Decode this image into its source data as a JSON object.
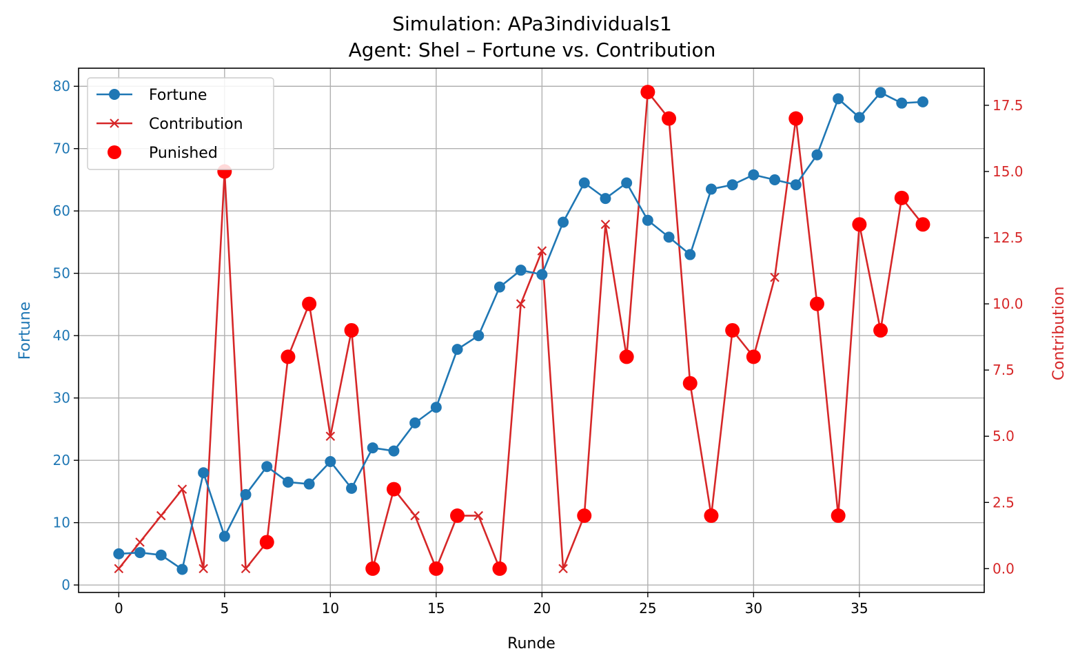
{
  "chart_data": {
    "type": "line",
    "title_lines": [
      "Simulation: APa3individuals1",
      "Agent: Shel – Fortune vs. Contribution"
    ],
    "xlabel": "Runde",
    "ylabel_left": "Fortune",
    "ylabel_right": "Contribution",
    "xlim": [
      -1.9,
      40.9
    ],
    "ylim_left": [
      -1.2,
      82.9
    ],
    "ylim_right": [
      -0.9,
      18.9
    ],
    "x_ticks": [
      0,
      5,
      10,
      15,
      20,
      25,
      30,
      35
    ],
    "y_ticks_left": [
      0,
      10,
      20,
      30,
      40,
      50,
      60,
      70,
      80
    ],
    "y_ticks_right": [
      "0.0",
      "2.5",
      "5.0",
      "7.5",
      "10.0",
      "12.5",
      "15.0",
      "17.5"
    ],
    "grid": true,
    "legend_position": "upper-left",
    "colors": {
      "fortune": "#1f77b4",
      "contribution": "#d62728",
      "punished": "#ff0000"
    },
    "x": [
      0,
      1,
      2,
      3,
      4,
      5,
      6,
      7,
      8,
      9,
      10,
      11,
      12,
      13,
      14,
      15,
      16,
      17,
      18,
      19,
      20,
      21,
      22,
      23,
      24,
      25,
      26,
      27,
      28,
      29,
      30,
      31,
      32,
      33,
      34,
      35,
      36,
      37,
      38
    ],
    "series": [
      {
        "name": "Fortune",
        "axis": "left",
        "marker": "circle",
        "values": [
          5.0,
          5.2,
          4.8,
          2.5,
          18.0,
          7.8,
          14.5,
          19.0,
          16.5,
          16.2,
          19.8,
          15.5,
          22.0,
          21.5,
          26.0,
          28.5,
          37.8,
          40.0,
          47.8,
          50.5,
          49.8,
          58.2,
          64.5,
          62.0,
          64.5,
          58.5,
          55.8,
          53.0,
          63.5,
          64.2,
          65.8,
          65.0,
          64.2,
          69.0,
          78.0,
          75.0,
          79.0,
          77.3,
          77.5
        ]
      },
      {
        "name": "Contribution",
        "axis": "right",
        "marker": "x",
        "values": [
          0,
          1,
          2,
          3,
          0,
          15,
          0,
          1,
          8,
          10,
          5,
          9,
          0,
          3,
          2,
          0,
          2,
          2,
          0,
          10,
          12,
          0,
          2,
          13,
          8,
          18,
          17,
          7,
          2,
          9,
          8,
          11,
          17,
          10,
          2,
          13,
          9,
          14,
          13
        ]
      },
      {
        "name": "Punished",
        "axis": "right",
        "marker": "dot",
        "x": [
          5,
          7,
          8,
          9,
          11,
          12,
          13,
          15,
          16,
          18,
          22,
          24,
          25,
          26,
          27,
          28,
          29,
          30,
          32,
          33,
          34,
          35,
          36,
          37,
          38
        ],
        "values": [
          15,
          1,
          8,
          10,
          9,
          0,
          3,
          0,
          2,
          0,
          2,
          8,
          18,
          17,
          7,
          2,
          9,
          8,
          17,
          10,
          2,
          13,
          9,
          14,
          13
        ]
      }
    ]
  }
}
